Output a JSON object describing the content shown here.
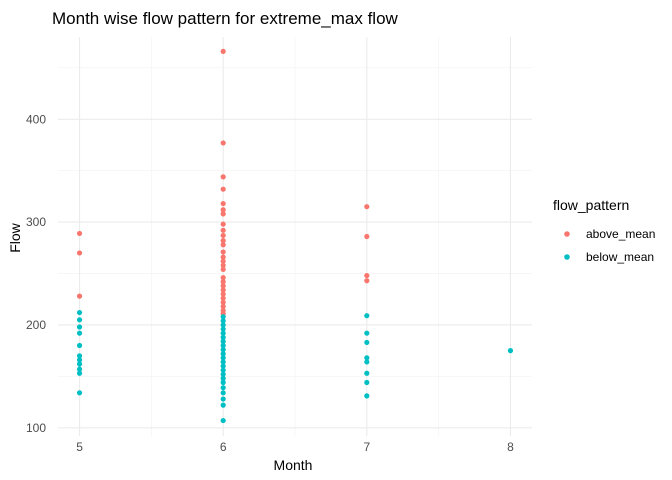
{
  "chart_data": {
    "type": "scatter",
    "title": "Month wise flow pattern for extreme_max flow",
    "xlabel": "Month",
    "ylabel": "Flow",
    "xlim": [
      4.85,
      8.15
    ],
    "ylim": [
      92,
      480
    ],
    "x_ticks": [
      "5",
      "6",
      "7",
      "8"
    ],
    "y_ticks": [
      "100",
      "200",
      "300",
      "400"
    ],
    "grid": true,
    "legend": {
      "title": "flow_pattern",
      "position": "right"
    },
    "series": [
      {
        "name": "above_mean",
        "color": "#F8766D",
        "points": [
          [
            5,
            289
          ],
          [
            5,
            270
          ],
          [
            5,
            228
          ],
          [
            6,
            466
          ],
          [
            6,
            377
          ],
          [
            6,
            344
          ],
          [
            6,
            332
          ],
          [
            6,
            318
          ],
          [
            6,
            312
          ],
          [
            6,
            308
          ],
          [
            6,
            298
          ],
          [
            6,
            292
          ],
          [
            6,
            287
          ],
          [
            6,
            282
          ],
          [
            6,
            278
          ],
          [
            6,
            271
          ],
          [
            6,
            266
          ],
          [
            6,
            262
          ],
          [
            6,
            258
          ],
          [
            6,
            254
          ],
          [
            6,
            246
          ],
          [
            6,
            242
          ],
          [
            6,
            238
          ],
          [
            6,
            234
          ],
          [
            6,
            230
          ],
          [
            6,
            226
          ],
          [
            6,
            222
          ],
          [
            6,
            218
          ],
          [
            6,
            214
          ],
          [
            6,
            211
          ],
          [
            7,
            315
          ],
          [
            7,
            286
          ],
          [
            7,
            248
          ],
          [
            7,
            243
          ]
        ]
      },
      {
        "name": "below_mean",
        "color": "#00BFC4",
        "points": [
          [
            5,
            212
          ],
          [
            5,
            205
          ],
          [
            5,
            198
          ],
          [
            5,
            192
          ],
          [
            5,
            180
          ],
          [
            5,
            170
          ],
          [
            5,
            166
          ],
          [
            5,
            162
          ],
          [
            5,
            157
          ],
          [
            5,
            153
          ],
          [
            5,
            134
          ],
          [
            6,
            208
          ],
          [
            6,
            204
          ],
          [
            6,
            200
          ],
          [
            6,
            196
          ],
          [
            6,
            192
          ],
          [
            6,
            188
          ],
          [
            6,
            184
          ],
          [
            6,
            180
          ],
          [
            6,
            176
          ],
          [
            6,
            172
          ],
          [
            6,
            168
          ],
          [
            6,
            164
          ],
          [
            6,
            160
          ],
          [
            6,
            156
          ],
          [
            6,
            152
          ],
          [
            6,
            148
          ],
          [
            6,
            144
          ],
          [
            6,
            139
          ],
          [
            6,
            134
          ],
          [
            6,
            128
          ],
          [
            6,
            122
          ],
          [
            6,
            107
          ],
          [
            7,
            209
          ],
          [
            7,
            192
          ],
          [
            7,
            183
          ],
          [
            7,
            168
          ],
          [
            7,
            164
          ],
          [
            7,
            153
          ],
          [
            7,
            144
          ],
          [
            7,
            131
          ],
          [
            8,
            175
          ]
        ]
      }
    ]
  }
}
